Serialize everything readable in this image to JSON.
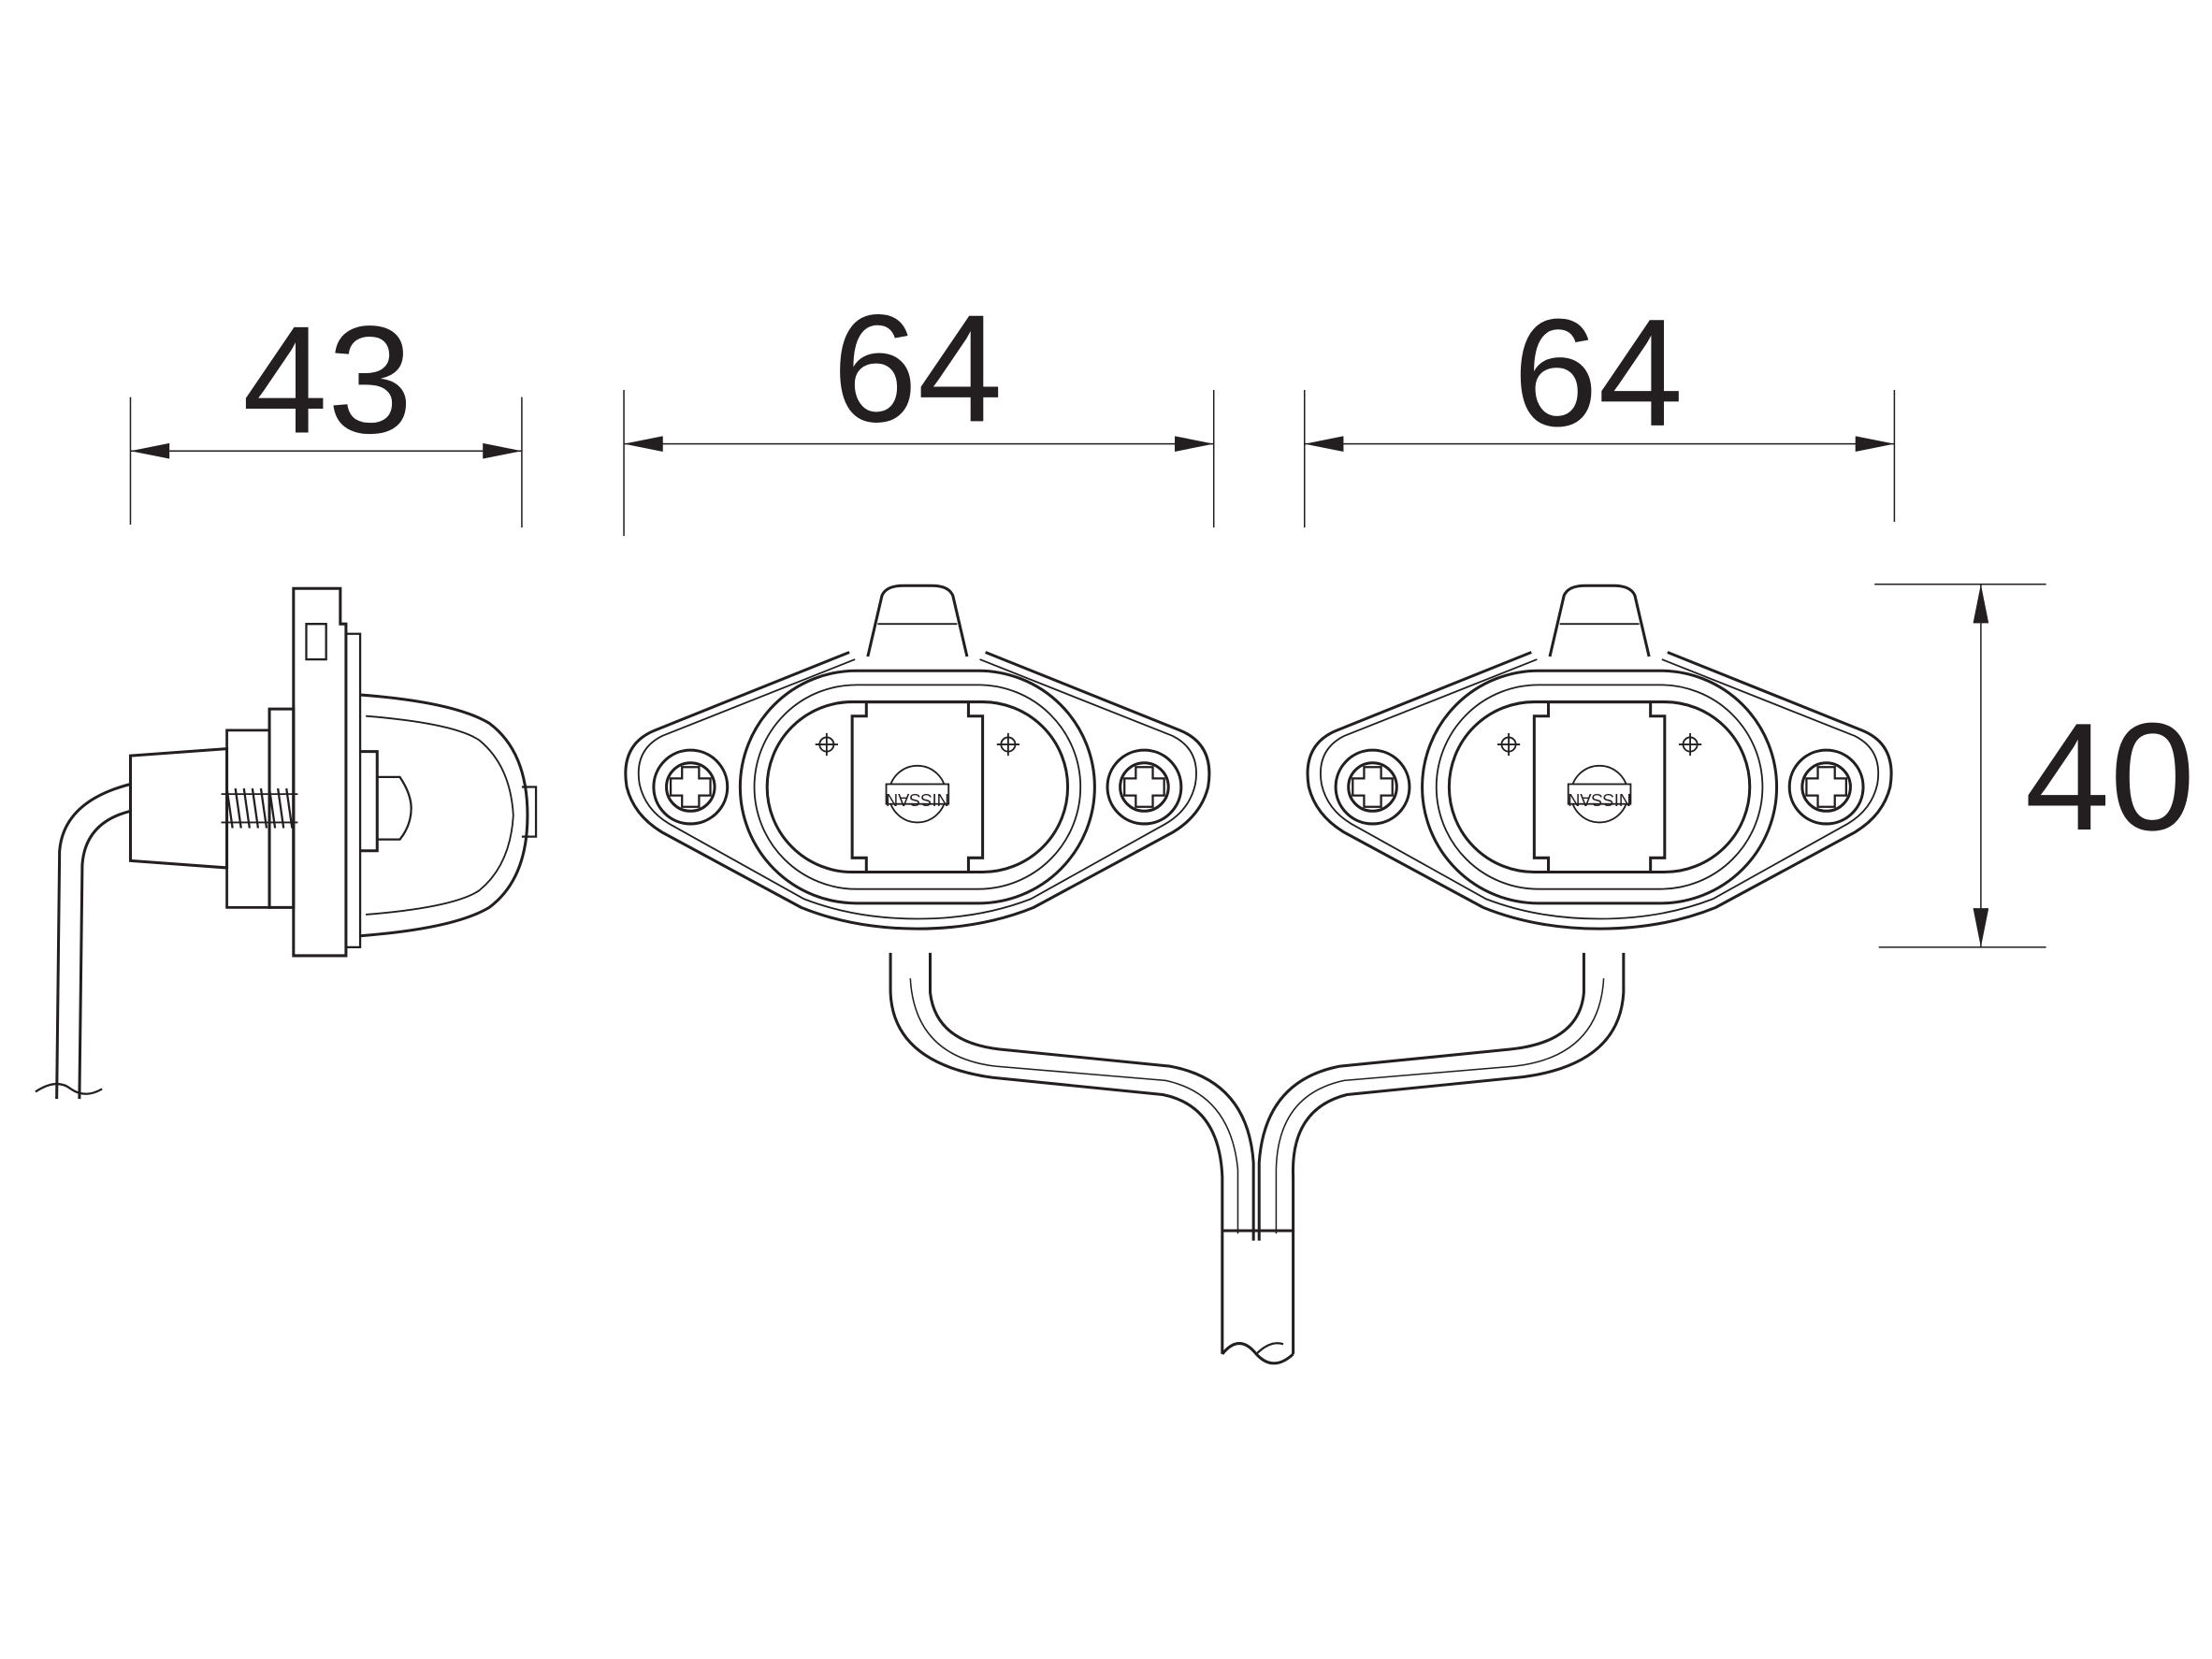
{
  "dimensions": {
    "side_width": "43",
    "lamp_left_width": "64",
    "lamp_right_width": "64",
    "height": "40"
  },
  "logo": {
    "text": "NISSAN"
  },
  "colors": {
    "line": "#231f20",
    "background": "#ffffff"
  }
}
